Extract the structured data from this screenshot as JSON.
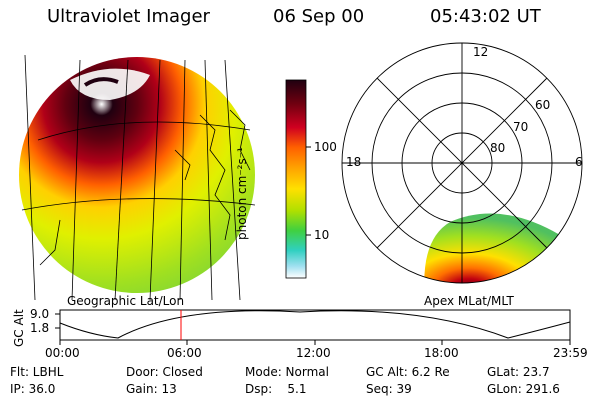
{
  "header": {
    "title": "Ultraviolet Imager",
    "date": "06 Sep 00",
    "time": "05:43:02 UT"
  },
  "left_panel": {
    "caption": "Geographic Lat/Lon"
  },
  "right_panel": {
    "caption": "Apex MLat/MLT",
    "mlt_labels": [
      "12",
      "18",
      "6"
    ],
    "lat_labels": [
      "60",
      "70",
      "80"
    ]
  },
  "colorbar": {
    "label": "photon cm⁻²s⁻¹",
    "ticks": [
      "100",
      "10"
    ]
  },
  "altitude_strip": {
    "axis_label": "GC Alt",
    "y_ticks": [
      "9.0",
      "1.8"
    ],
    "x_ticks": [
      "00:00",
      "06:00",
      "12:00",
      "18:00",
      "23:59"
    ],
    "marker_color": "#ff0000"
  },
  "info": {
    "row1": [
      "Flt: LBHL",
      "Door: Closed",
      "Mode: Normal",
      "GC Alt: 6.2 Re",
      "GLat: 23.7"
    ],
    "row2": [
      "IP: 36.0",
      "Gain: 13",
      "Dsp:    5.1",
      "Seq: 39",
      "GLon: 291.6"
    ]
  }
}
